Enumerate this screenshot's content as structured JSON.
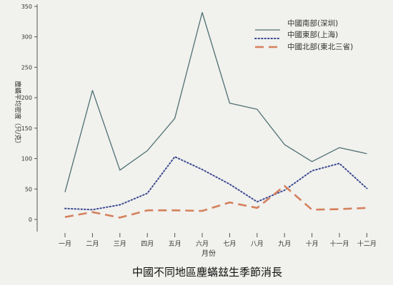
{
  "chart_data": {
    "type": "line",
    "title": "中國不同地區塵蟎玆生季節消長",
    "xlabel": "月份",
    "ylabel": "塵蟎平均密度（只/克）",
    "categories": [
      "一月",
      "二月",
      "三月",
      "四月",
      "五月",
      "六月",
      "七月",
      "八月",
      "九月",
      "十月",
      "十一月",
      "十二月"
    ],
    "ylim": [
      0,
      350
    ],
    "yticks": [
      "0",
      "50",
      "100",
      "150",
      "200",
      "250",
      "300",
      "350"
    ],
    "grid": false,
    "legend_position": "top-right",
    "series": [
      {
        "name": "中國南部(深圳)",
        "style": "solid",
        "color": "#4f7072",
        "values": [
          45,
          212,
          81,
          113,
          166,
          340,
          191,
          181,
          123,
          95,
          118,
          108
        ]
      },
      {
        "name": "中國東部(上海)",
        "style": "dotted",
        "color": "#3d4a8f",
        "values": [
          18,
          16,
          24,
          43,
          103,
          82,
          58,
          29,
          48,
          80,
          92,
          51
        ]
      },
      {
        "name": "中國北部(東北三省)",
        "style": "dashed",
        "color": "#d4805b",
        "values": [
          4,
          12,
          3,
          15,
          15,
          14,
          28,
          19,
          55,
          16,
          17,
          19
        ]
      }
    ]
  },
  "colors": {
    "background": "#f1f1ee",
    "axis": "#555555"
  }
}
